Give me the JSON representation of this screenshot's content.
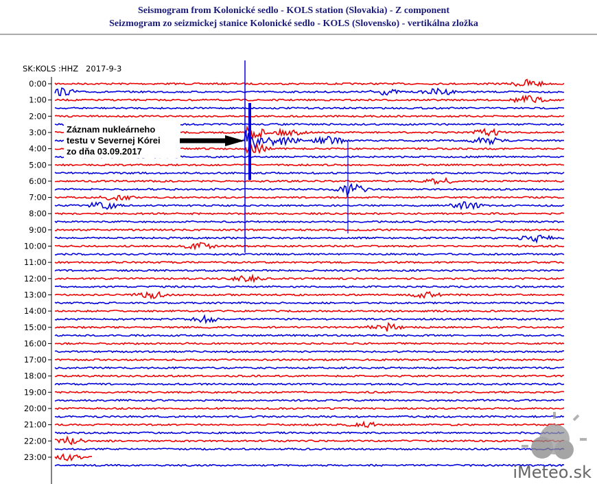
{
  "header": {
    "title_en": "Seismogram from Kolonické sedlo - KOLS station (Slovakia) - Z component",
    "title_sk": "Seizmogram zo seizmickej stanice Kolonické sedlo - KOLS (Slovensko) - vertikálna zložka"
  },
  "plot": {
    "station_label": "SK:KOLS :HHZ   2017-9-3",
    "hour_labels": [
      "0:00",
      "1:00",
      "2:00",
      "3:00",
      "4:00",
      "5:00",
      "6:00",
      "7:00",
      "8:00",
      "9:00",
      "10:00",
      "11:00",
      "12:00",
      "13:00",
      "14:00",
      "15:00",
      "16:00",
      "17:00",
      "18:00",
      "19:00",
      "20:00",
      "21:00",
      "22:00",
      "23:00"
    ],
    "annotation": [
      "Záznam nukleárneho",
      "testu v Severnej Kórei",
      "zo dňa 03.09.2017"
    ]
  },
  "watermark": "iMeteo.sk"
}
